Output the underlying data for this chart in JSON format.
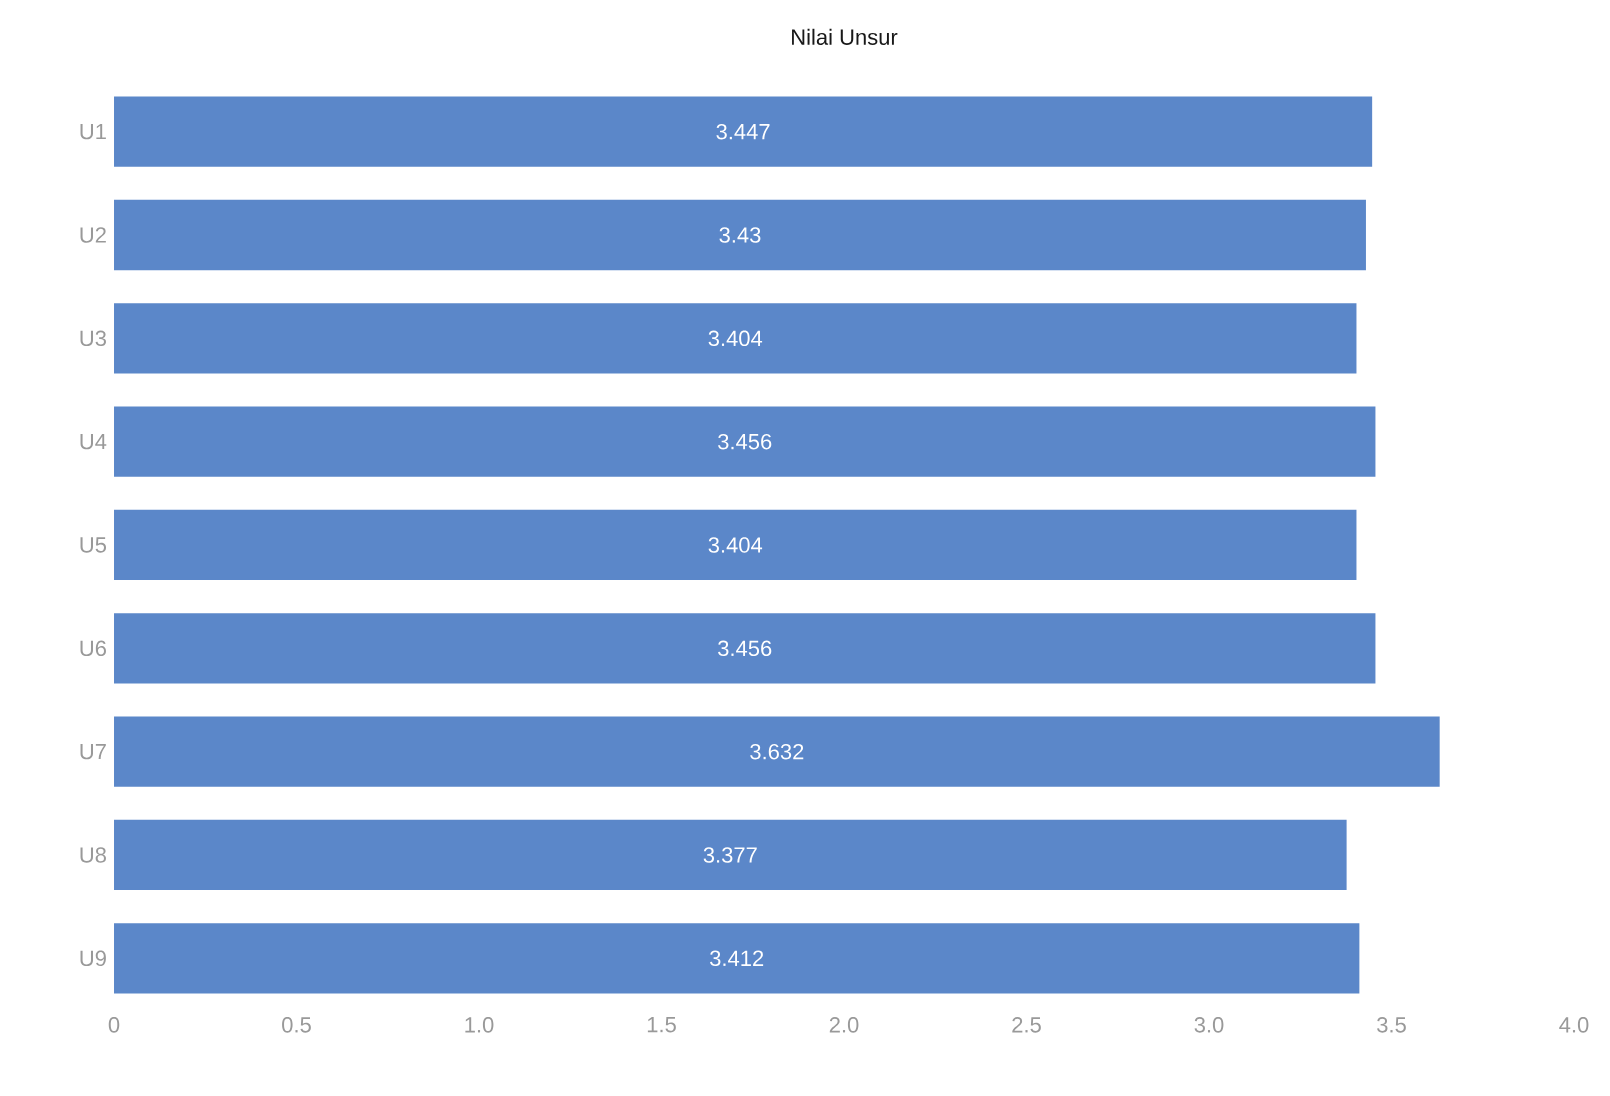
{
  "chart_data": {
    "type": "bar",
    "orientation": "horizontal",
    "title": "Nilai Unsur",
    "categories": [
      "U1",
      "U2",
      "U3",
      "U4",
      "U5",
      "U6",
      "U7",
      "U8",
      "U9"
    ],
    "values": [
      3.447,
      3.43,
      3.404,
      3.456,
      3.404,
      3.456,
      3.632,
      3.377,
      3.412
    ],
    "color": "#5b87c9",
    "xlim": [
      0,
      4
    ],
    "xticks": [
      0,
      0.5,
      {
        "value": 1,
        "label": "1.0"
      },
      1.5,
      {
        "value": 2,
        "label": "2.0"
      },
      2.5,
      {
        "value": 3,
        "label": "3.0"
      },
      3.5,
      {
        "value": 4,
        "label": "4.0"
      }
    ],
    "data_labels": true,
    "grid": false
  }
}
